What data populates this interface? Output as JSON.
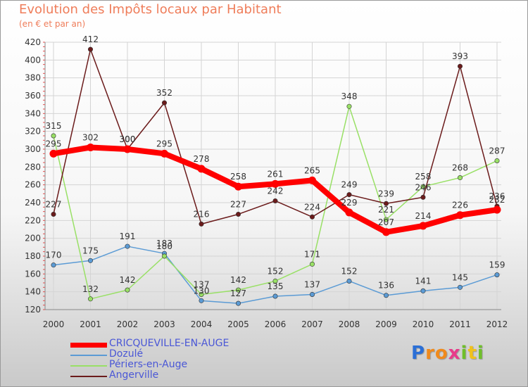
{
  "header": {
    "title": "Evolution des Impôts locaux par Habitant",
    "subtitle": "(en € et par an)"
  },
  "logo": {
    "letters": [
      "P",
      "r",
      "o",
      "x",
      "i",
      "t",
      "i"
    ],
    "colors": [
      "#2b6fd6",
      "#f08a1c",
      "#f08a1c",
      "#e83a8a",
      "#6fbf2a",
      "#f0c21c",
      "#6fbf2a"
    ]
  },
  "chart_data": {
    "type": "line",
    "categories": [
      "2000",
      "2001",
      "2002",
      "2003",
      "2004",
      "2005",
      "2006",
      "2007",
      "2008",
      "2009",
      "2010",
      "2011",
      "2012"
    ],
    "ylim": [
      120,
      420
    ],
    "yticks": [
      120,
      140,
      160,
      180,
      200,
      220,
      240,
      260,
      280,
      300,
      320,
      340,
      360,
      380,
      400,
      420
    ],
    "grid": true,
    "legend_position": "bottom-left",
    "series": [
      {
        "name": "CRICQUEVILLE-EN-AUGE",
        "color": "#ff0000",
        "values": [
          295,
          302,
          300,
          295,
          278,
          258,
          261,
          265,
          229,
          207,
          214,
          226,
          232
        ]
      },
      {
        "name": "Dozulé",
        "color": "#5b9bd5",
        "values": [
          170,
          175,
          191,
          183,
          130,
          127,
          135,
          137,
          152,
          136,
          141,
          145,
          159
        ]
      },
      {
        "name": "Périers-en-Auge",
        "color": "#99e066",
        "values": [
          315,
          132,
          142,
          180,
          137,
          142,
          152,
          171,
          348,
          221,
          258,
          268,
          287
        ]
      },
      {
        "name": "Angerville",
        "color": "#6b1b1b",
        "values": [
          227,
          412,
          300,
          352,
          216,
          227,
          242,
          224,
          249,
          239,
          246,
          393,
          236
        ]
      }
    ]
  }
}
